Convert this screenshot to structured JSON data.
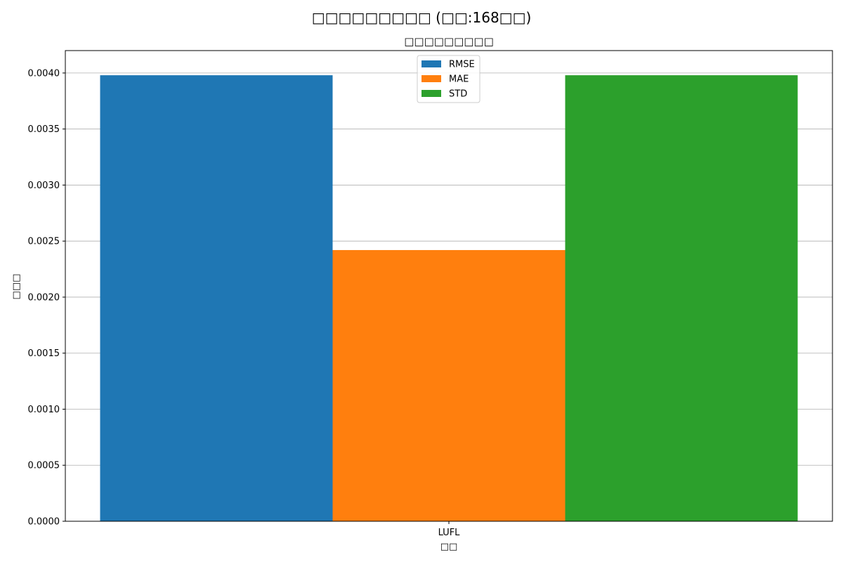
{
  "chart_data": {
    "type": "bar",
    "title": "□□□□□□□□□ (□□:168□□)",
    "subtitle": "□□□□□□□□□",
    "xlabel": "□□",
    "ylabel": "□□□",
    "categories": [
      "LUFL"
    ],
    "series": [
      {
        "name": "RMSE",
        "values": [
          0.00398
        ],
        "color": "#1f77b4"
      },
      {
        "name": "MAE",
        "values": [
          0.00242
        ],
        "color": "#ff7f0e"
      },
      {
        "name": "STD",
        "values": [
          0.00398
        ],
        "color": "#2ca02c"
      }
    ],
    "ylim": [
      0,
      0.0042
    ],
    "yticks": [
      "0.0000",
      "0.0005",
      "0.0010",
      "0.0015",
      "0.0020",
      "0.0025",
      "0.0030",
      "0.0035",
      "0.0040"
    ],
    "grid": "y-axis on",
    "legend_position": "upper-center"
  }
}
